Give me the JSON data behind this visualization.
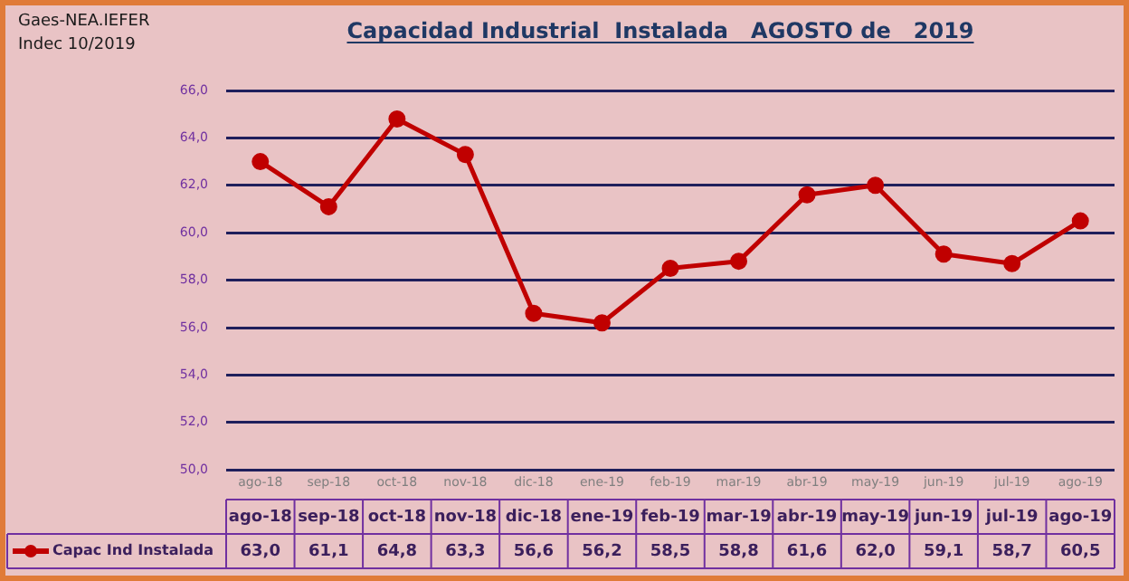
{
  "chart_data": {
    "type": "line",
    "title": "Capacidad Industrial  Instalada   AGOSTO de   2019",
    "annotations": [
      "Gaes-NEA.IEFER",
      "Indec 10/2019"
    ],
    "categories": [
      "ago-18",
      "sep-18",
      "oct-18",
      "nov-18",
      "dic-18",
      "ene-19",
      "feb-19",
      "mar-19",
      "abr-19",
      "may-19",
      "jun-19",
      "jul-19",
      "ago-19"
    ],
    "series": [
      {
        "name": "Capac Ind Instalada",
        "color": "#c00000",
        "values": [
          63.0,
          61.1,
          64.8,
          63.3,
          56.6,
          56.2,
          58.5,
          58.8,
          61.6,
          62.0,
          59.1,
          58.7,
          60.5
        ],
        "value_labels": [
          "63,0",
          "61,1",
          "64,8",
          "63,3",
          "56,6",
          "56,2",
          "58,5",
          "58,8",
          "61,6",
          "62,0",
          "59,1",
          "58,7",
          "60,5"
        ]
      }
    ],
    "ylim": [
      50,
      66
    ],
    "yticks": [
      {
        "value": 50,
        "label": "50,0"
      },
      {
        "value": 52,
        "label": "52,0"
      },
      {
        "value": 54,
        "label": "54,0"
      },
      {
        "value": 56,
        "label": "56,0"
      },
      {
        "value": 58,
        "label": "58,0"
      },
      {
        "value": 60,
        "label": "60,0"
      },
      {
        "value": 62,
        "label": "62,0"
      },
      {
        "value": 64,
        "label": "64,0"
      },
      {
        "value": 66,
        "label": "66,0"
      }
    ],
    "grid": "y",
    "legend": "bottom left",
    "marker": "circle",
    "line_style": "solid"
  }
}
